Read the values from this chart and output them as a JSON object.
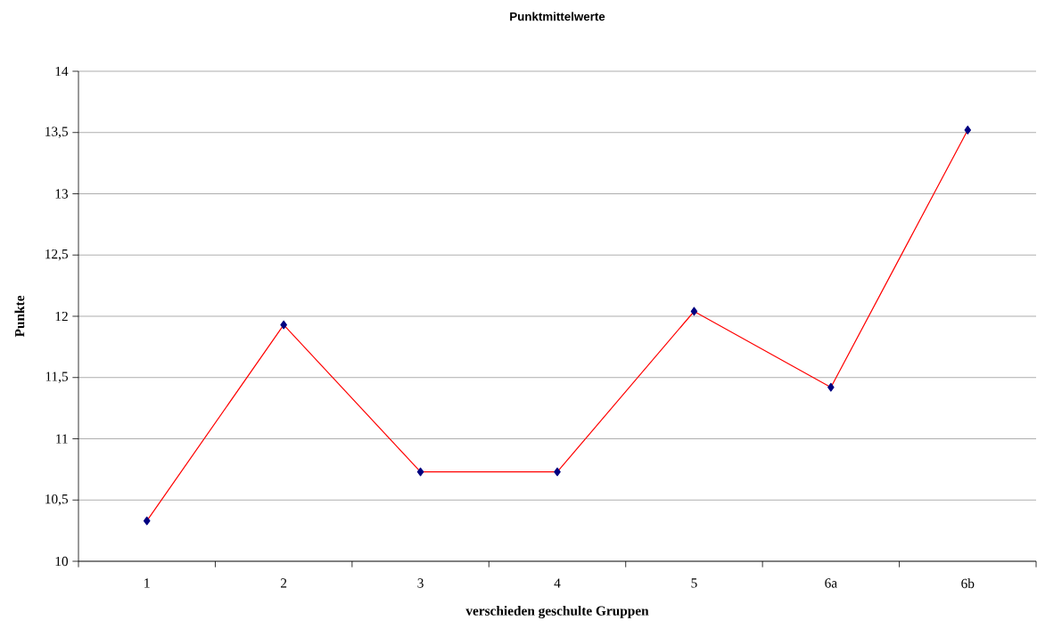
{
  "chart_data": {
    "type": "line",
    "title": "Punktmittelwerte",
    "xlabel": "verschieden geschulte Gruppen",
    "ylabel": "Punkte",
    "categories": [
      "1",
      "2",
      "3",
      "4",
      "5",
      "6a",
      "6b"
    ],
    "series": [
      {
        "color": "#ff0000",
        "values": [
          10.33,
          11.93,
          10.73,
          10.73,
          12.04,
          11.42,
          13.52
        ]
      }
    ],
    "marker": "diamond",
    "line_style": "solid",
    "ylim": [
      10,
      14
    ],
    "yticks": [
      10,
      {
        "value": 10.5,
        "label": "10,5"
      },
      11,
      {
        "value": 11.5,
        "label": "11,5"
      },
      12,
      {
        "value": 12.5,
        "label": "12,5"
      },
      13,
      {
        "value": 13.5,
        "label": "13,5"
      },
      14
    ],
    "grid": "y"
  }
}
